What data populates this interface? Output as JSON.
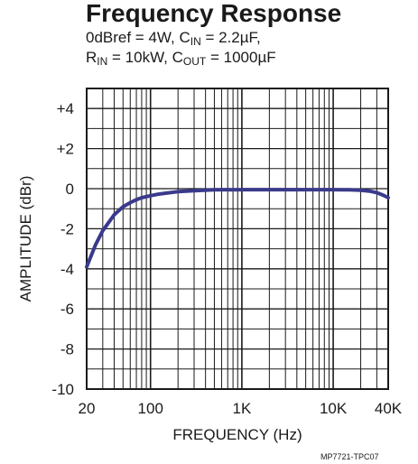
{
  "header": {
    "title": "Frequency Response",
    "sub1_a": "0dBref = 4W, C",
    "sub1_b": "IN",
    "sub1_c": " = 2.2µF,",
    "sub2_a": "R",
    "sub2_b": "IN",
    "sub2_c": " = 10kW, C",
    "sub2_d": "OUT",
    "sub2_e": " = 1000µF"
  },
  "figure_code": "MP7721-TPC07",
  "colors": {
    "curve": "#3a3a8c",
    "grid": "#1a1a1a",
    "text": "#1a1a1a"
  },
  "chart_data": {
    "type": "line",
    "title": "Frequency Response",
    "xlabel": "FREQUENCY (Hz)",
    "ylabel": "AMPLITUDE (dBr)",
    "x_scale": "log",
    "xlim": [
      20,
      40000
    ],
    "ylim": [
      -10,
      5
    ],
    "grid": true,
    "x_ticks": [
      {
        "value": 20,
        "label": "20"
      },
      {
        "value": 100,
        "label": "100"
      },
      {
        "value": 1000,
        "label": "1K"
      },
      {
        "value": 10000,
        "label": "10K"
      },
      {
        "value": 40000,
        "label": "40K"
      }
    ],
    "y_ticks": [
      {
        "value": 4,
        "label": "+4"
      },
      {
        "value": 2,
        "label": "+2"
      },
      {
        "value": 0,
        "label": "0"
      },
      {
        "value": -2,
        "label": "-2"
      },
      {
        "value": -4,
        "label": "-4"
      },
      {
        "value": -6,
        "label": "-6"
      },
      {
        "value": -8,
        "label": "-8"
      },
      {
        "value": -10,
        "label": "-10"
      }
    ],
    "series": [
      {
        "x": [
          20,
          25,
          30,
          40,
          50,
          60,
          70,
          80,
          100,
          120,
          150,
          200,
          300,
          500,
          1000,
          2000,
          5000,
          10000,
          15000,
          20000,
          25000,
          30000,
          35000,
          40000
        ],
        "y": [
          -3.9,
          -2.8,
          -2.1,
          -1.3,
          -0.9,
          -0.7,
          -0.55,
          -0.45,
          -0.35,
          -0.28,
          -0.22,
          -0.15,
          -0.1,
          -0.06,
          -0.05,
          -0.05,
          -0.05,
          -0.05,
          -0.06,
          -0.08,
          -0.12,
          -0.2,
          -0.32,
          -0.45
        ]
      }
    ]
  }
}
